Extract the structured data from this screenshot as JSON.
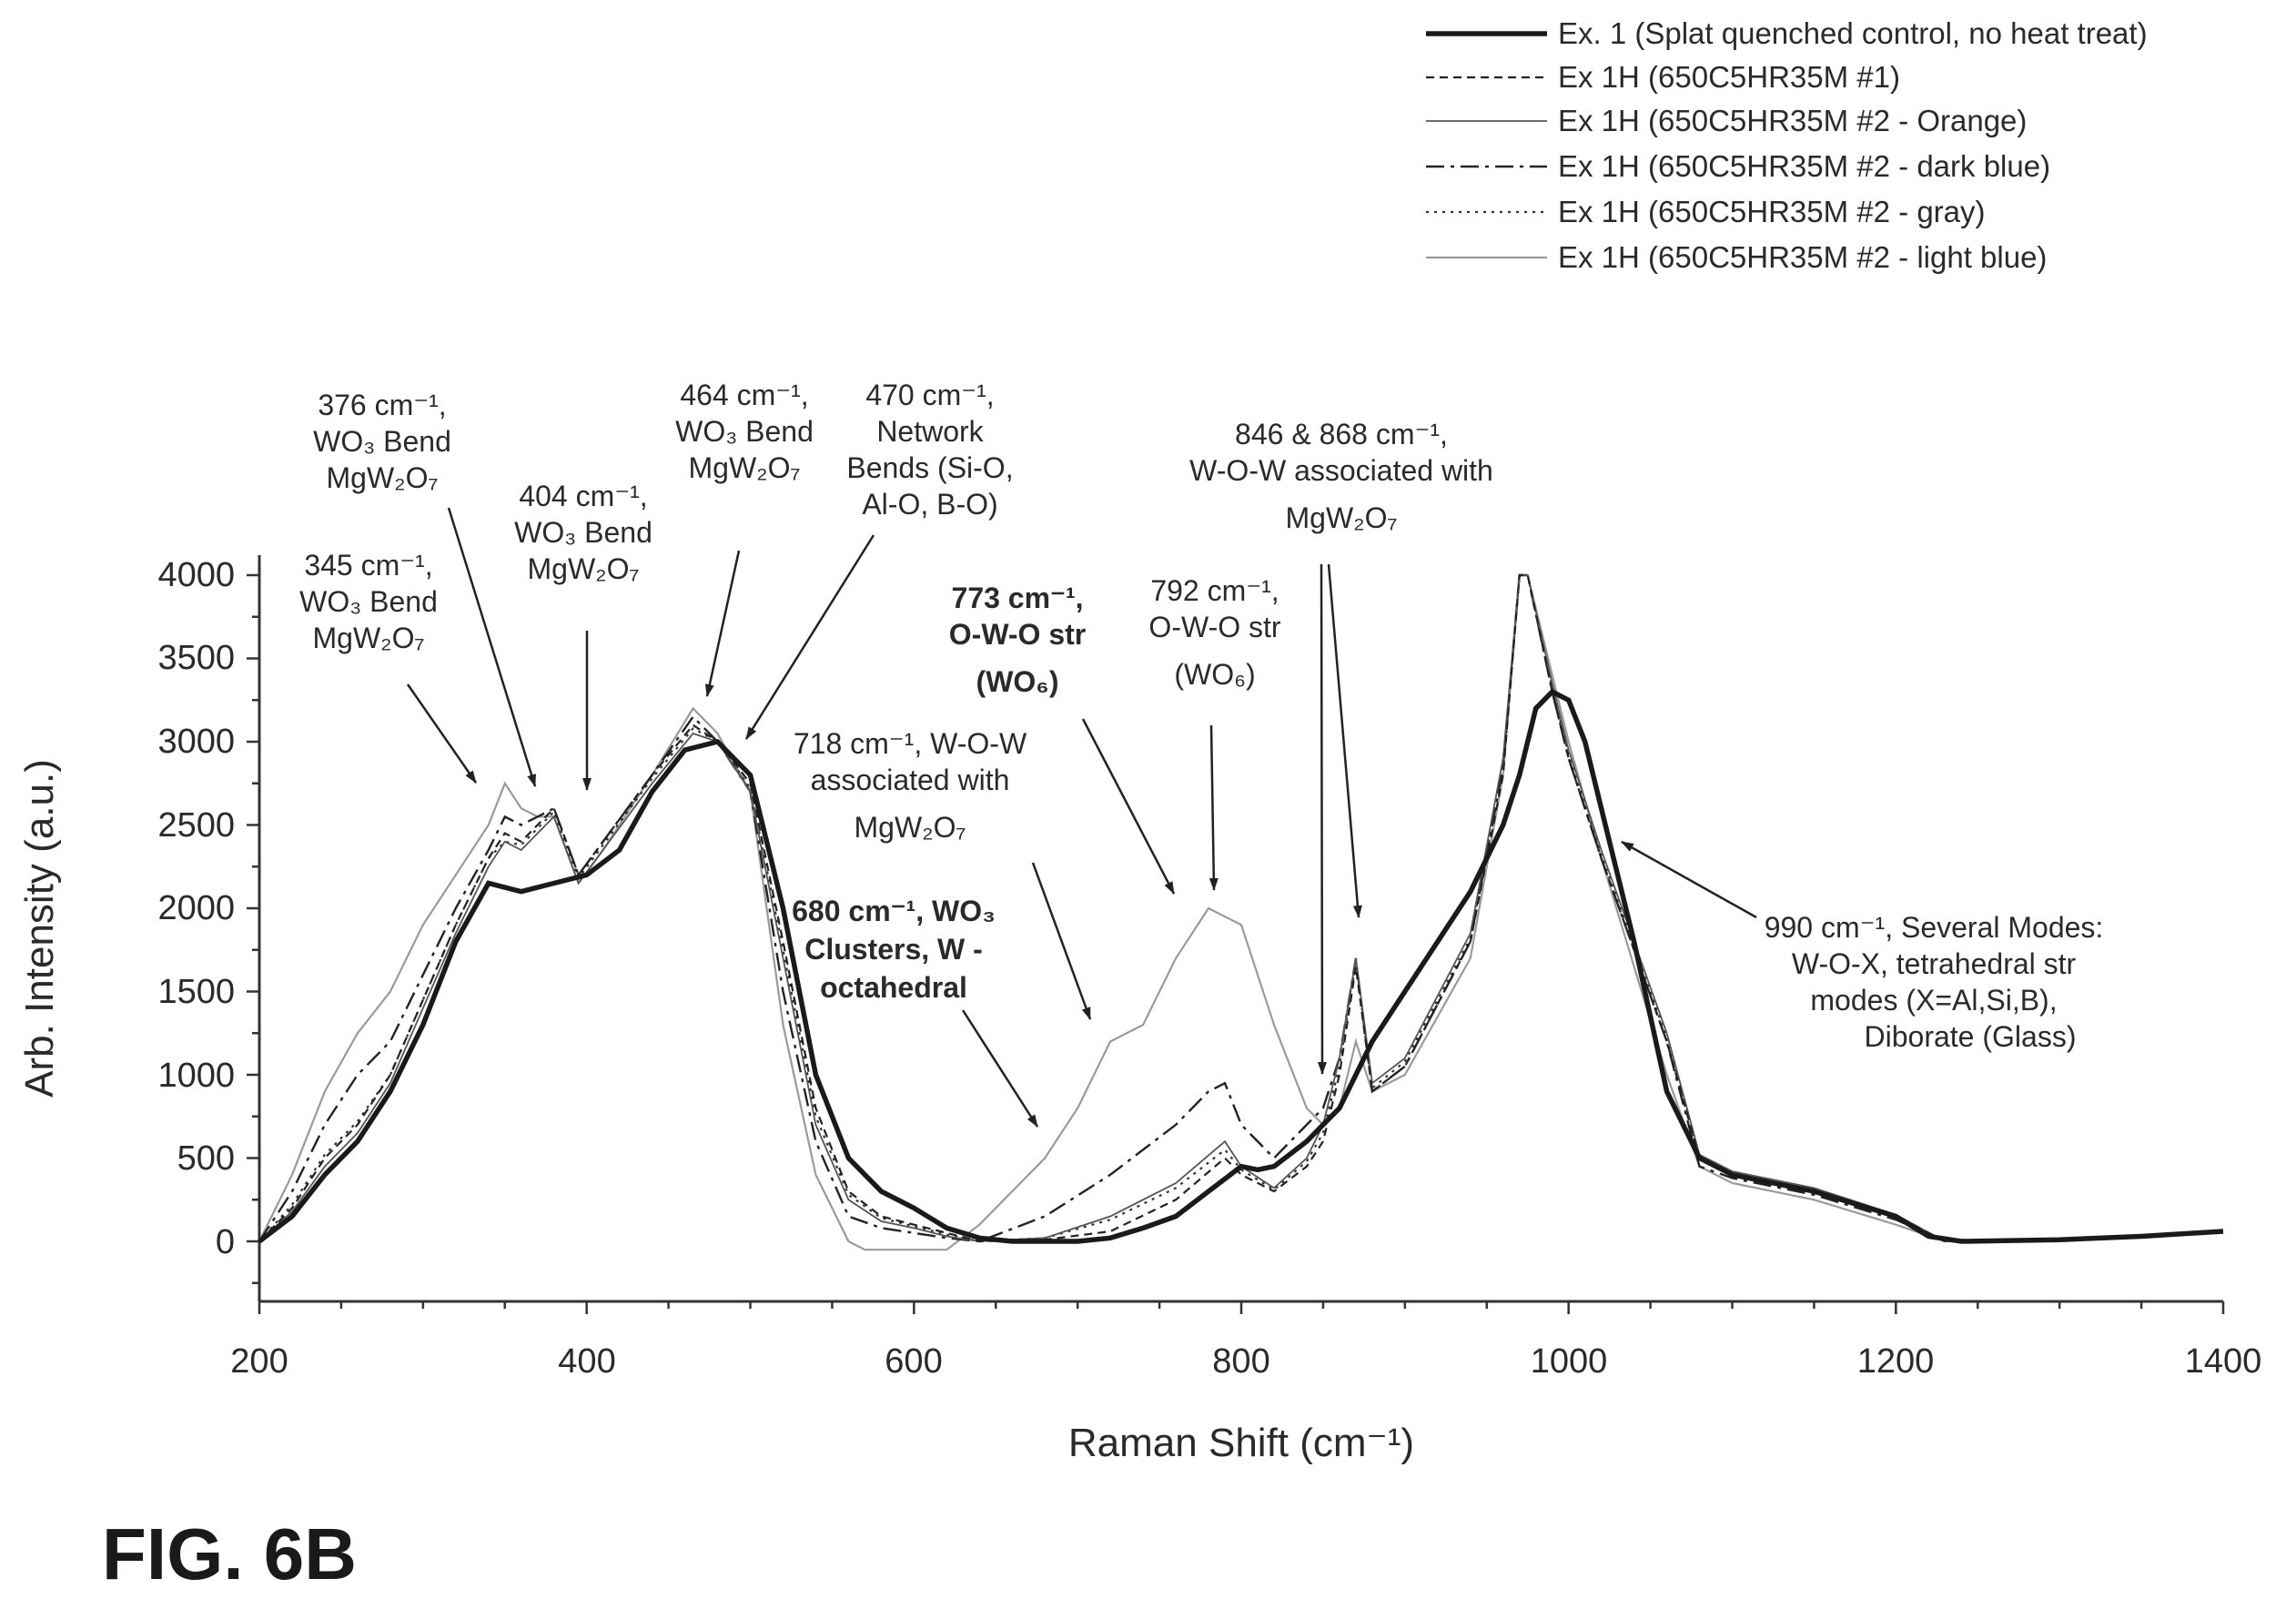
{
  "chart_data": {
    "type": "line",
    "title": "",
    "xlabel": "Raman Shift (cm⁻¹)",
    "ylabel": "Arb. Intensity (a.u.)",
    "xlim": [
      200,
      1400
    ],
    "ylim": [
      -400,
      4000
    ],
    "xticks": [
      "200",
      "400",
      "600",
      "800",
      "1000",
      "1200",
      "1400"
    ],
    "yticks": [
      "0",
      "500",
      "1000",
      "1500",
      "2000",
      "2500",
      "3000",
      "3500",
      "4000"
    ],
    "grid": false,
    "legend_position": "top-right",
    "series": [
      {
        "name": "Ex. 1 (Splat quenched control, no heat treat)",
        "style": "thick-solid",
        "x": [
          200,
          220,
          240,
          260,
          280,
          300,
          320,
          340,
          360,
          380,
          400,
          420,
          440,
          460,
          480,
          500,
          520,
          540,
          560,
          580,
          600,
          620,
          640,
          660,
          680,
          700,
          720,
          740,
          760,
          780,
          800,
          810,
          820,
          840,
          860,
          880,
          900,
          920,
          940,
          960,
          970,
          980,
          990,
          1000,
          1010,
          1020,
          1040,
          1060,
          1080,
          1100,
          1150,
          1200,
          1220,
          1240,
          1300,
          1350,
          1400
        ],
        "y": [
          0,
          150,
          400,
          600,
          900,
          1300,
          1800,
          2150,
          2100,
          2150,
          2200,
          2350,
          2700,
          2950,
          3000,
          2800,
          2000,
          1000,
          500,
          300,
          200,
          80,
          20,
          0,
          0,
          0,
          20,
          80,
          150,
          300,
          450,
          430,
          450,
          600,
          800,
          1200,
          1500,
          1800,
          2100,
          2500,
          2800,
          3200,
          3300,
          3250,
          3000,
          2600,
          1800,
          900,
          500,
          400,
          300,
          150,
          30,
          0,
          10,
          30,
          60
        ]
      },
      {
        "name": "Ex 1H (650C5HR35M #1)",
        "style": "dashed",
        "x": [
          200,
          220,
          240,
          260,
          280,
          300,
          320,
          340,
          350,
          360,
          370,
          380,
          395,
          410,
          440,
          465,
          480,
          500,
          520,
          540,
          560,
          580,
          600,
          620,
          640,
          680,
          720,
          760,
          790,
          800,
          820,
          840,
          850,
          860,
          870,
          880,
          900,
          940,
          960,
          970,
          975,
          990,
          1000,
          1020,
          1060,
          1080,
          1100,
          1150,
          1200,
          1230,
          1300,
          1400
        ],
        "y": [
          0,
          200,
          500,
          700,
          1000,
          1450,
          1900,
          2300,
          2450,
          2400,
          2500,
          2600,
          2200,
          2400,
          2800,
          3100,
          3000,
          2750,
          1800,
          800,
          300,
          150,
          100,
          50,
          0,
          10,
          60,
          250,
          500,
          400,
          300,
          450,
          600,
          1000,
          1650,
          900,
          1050,
          1800,
          2800,
          4000,
          4000,
          3300,
          2900,
          2300,
          1200,
          500,
          400,
          300,
          150,
          0,
          10,
          60
        ]
      },
      {
        "name": "Ex 1H (650C5HR35M #2 - Orange)",
        "style": "thin-solid",
        "x": [
          200,
          220,
          240,
          260,
          280,
          300,
          320,
          340,
          350,
          360,
          370,
          380,
          395,
          410,
          440,
          465,
          480,
          500,
          520,
          540,
          560,
          580,
          600,
          620,
          640,
          680,
          720,
          760,
          790,
          800,
          820,
          840,
          850,
          860,
          870,
          880,
          900,
          940,
          960,
          970,
          975,
          990,
          1000,
          1020,
          1060,
          1080,
          1100,
          1150,
          1200,
          1230,
          1300,
          1400
        ],
        "y": [
          0,
          180,
          450,
          650,
          950,
          1400,
          1850,
          2250,
          2400,
          2350,
          2450,
          2550,
          2150,
          2350,
          2750,
          3050,
          3000,
          2700,
          1700,
          700,
          250,
          120,
          80,
          30,
          0,
          20,
          150,
          350,
          600,
          450,
          320,
          500,
          700,
          1100,
          1700,
          950,
          1100,
          1850,
          2900,
          4000,
          4000,
          3350,
          2950,
          2350,
          1250,
          520,
          420,
          320,
          160,
          0,
          10,
          60
        ]
      },
      {
        "name": "Ex 1H (650C5HR35M #2 - dark blue)",
        "style": "dash-dot",
        "x": [
          200,
          220,
          240,
          260,
          280,
          300,
          320,
          340,
          350,
          360,
          370,
          380,
          395,
          410,
          440,
          465,
          480,
          500,
          520,
          540,
          560,
          580,
          600,
          620,
          640,
          680,
          720,
          740,
          760,
          780,
          790,
          800,
          820,
          840,
          850,
          860,
          870,
          880,
          900,
          940,
          960,
          970,
          975,
          990,
          1000,
          1020,
          1060,
          1080,
          1100,
          1150,
          1200,
          1230,
          1300,
          1400
        ],
        "y": [
          0,
          300,
          700,
          1000,
          1200,
          1600,
          2000,
          2350,
          2550,
          2500,
          2550,
          2600,
          2200,
          2400,
          2800,
          3150,
          3000,
          2700,
          1500,
          600,
          150,
          80,
          50,
          20,
          0,
          150,
          400,
          550,
          700,
          900,
          950,
          700,
          500,
          700,
          800,
          1100,
          1700,
          900,
          1050,
          1800,
          2850,
          4000,
          4000,
          3300,
          2900,
          2300,
          1200,
          450,
          380,
          280,
          130,
          0,
          10,
          60
        ]
      },
      {
        "name": "Ex 1H (650C5HR35M #2 - gray)",
        "style": "dotted",
        "x": [
          200,
          220,
          240,
          260,
          280,
          300,
          320,
          340,
          350,
          360,
          370,
          380,
          395,
          410,
          440,
          465,
          480,
          500,
          520,
          540,
          560,
          580,
          600,
          620,
          640,
          680,
          720,
          760,
          790,
          800,
          820,
          840,
          850,
          860,
          870,
          880,
          900,
          940,
          960,
          970,
          975,
          990,
          1000,
          1020,
          1060,
          1080,
          1100,
          1150,
          1200,
          1230,
          1300,
          1400
        ],
        "y": [
          0,
          220,
          520,
          720,
          1000,
          1450,
          1900,
          2300,
          2400,
          2380,
          2480,
          2580,
          2180,
          2380,
          2780,
          3080,
          3000,
          2720,
          1750,
          750,
          280,
          140,
          90,
          40,
          0,
          20,
          130,
          320,
          550,
          430,
          310,
          480,
          650,
          1050,
          1680,
          920,
          1080,
          1820,
          2850,
          4000,
          4000,
          3320,
          2920,
          2320,
          1220,
          500,
          400,
          300,
          150,
          0,
          10,
          60
        ]
      },
      {
        "name": "Ex 1H (650C5HR35M #2 - light blue)",
        "style": "thin-gray",
        "x": [
          200,
          220,
          240,
          260,
          280,
          300,
          320,
          340,
          350,
          360,
          370,
          380,
          395,
          410,
          440,
          465,
          480,
          500,
          520,
          540,
          560,
          570,
          600,
          620,
          640,
          660,
          680,
          700,
          720,
          740,
          760,
          780,
          790,
          800,
          820,
          840,
          850,
          860,
          870,
          880,
          900,
          940,
          960,
          970,
          975,
          990,
          1000,
          1020,
          1060,
          1080,
          1100,
          1150,
          1200,
          1230,
          1300,
          1400
        ],
        "y": [
          0,
          400,
          900,
          1250,
          1500,
          1900,
          2200,
          2500,
          2750,
          2600,
          2550,
          2550,
          2150,
          2350,
          2800,
          3200,
          3050,
          2700,
          1300,
          400,
          0,
          -50,
          -50,
          -50,
          100,
          300,
          500,
          800,
          1200,
          1300,
          1700,
          2000,
          1950,
          1900,
          1300,
          800,
          700,
          800,
          1200,
          900,
          1000,
          1700,
          2800,
          4000,
          4000,
          3400,
          3000,
          2300,
          1000,
          450,
          350,
          250,
          100,
          0,
          10,
          60
        ]
      }
    ],
    "annotations": [
      {
        "line1": "376 cm⁻¹,",
        "line2": "WO₃ Bend",
        "line3": "MgW₂O₇",
        "target_x": 370,
        "target_y": 2700
      },
      {
        "line1": "345 cm⁻¹,",
        "line2": "WO₃ Bend",
        "line3": "MgW₂O₇",
        "target_x": 345,
        "target_y": 2730
      },
      {
        "line1": "404 cm⁻¹,",
        "line2": "WO₃ Bend",
        "line3": "MgW₂O₇",
        "target_x": 400,
        "target_y": 2620
      },
      {
        "line1": "464 cm⁻¹,",
        "line2": "WO₃ Bend",
        "line3": "MgW₂O₇",
        "target_x": 465,
        "target_y": 3200
      },
      {
        "line1": "470 cm⁻¹,",
        "line2": "Network",
        "line3": "Bends (Si-O,",
        "line4": "Al-O, B-O)",
        "target_x": 480,
        "target_y": 3050
      },
      {
        "line1": "846 & 868 cm⁻¹,",
        "line2": "W-O-W associated with",
        "line3": "MgW₂O₇",
        "target_x": 848,
        "target_y": 1030
      },
      {
        "line1": "773 cm⁻¹,",
        "line2": "O-W-O str",
        "line3": "(WO₆)",
        "bold": true,
        "target_x": 762,
        "target_y": 2050
      },
      {
        "line1": "792 cm⁻¹,",
        "line2": "O-W-O str",
        "line3": "(WO₆)",
        "target_x": 790,
        "target_y": 2050
      },
      {
        "line1": "718 cm⁻¹, W-O-W",
        "line2": "associated with",
        "line3": "MgW₂O₇",
        "target_x": 718,
        "target_y": 1300
      },
      {
        "line1": "680 cm⁻¹, WO₃",
        "line2": "Clusters, W -",
        "line3": "octahedral",
        "bold": true,
        "target_x": 695,
        "target_y": 720
      },
      {
        "line1": "990 cm⁻¹, Several Modes:",
        "line2": "W-O-X, tetrahedral str",
        "line3": "modes (X=Al,Si,B),",
        "line4": "Diborate (Glass)",
        "target_x": 1030,
        "target_y": 2390
      }
    ]
  },
  "figure_label": "FIG. 6B"
}
